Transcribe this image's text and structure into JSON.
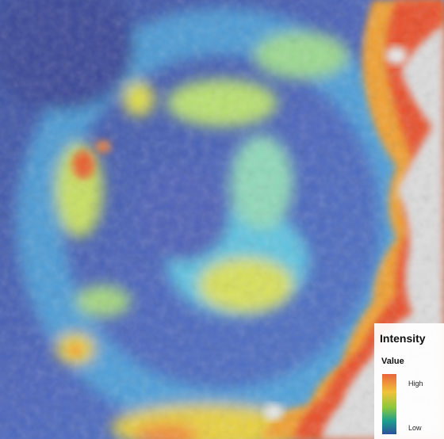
{
  "legend": {
    "title": "Intensity",
    "subtitle": "Value",
    "high_label": "High",
    "low_label": "Low"
  }
}
